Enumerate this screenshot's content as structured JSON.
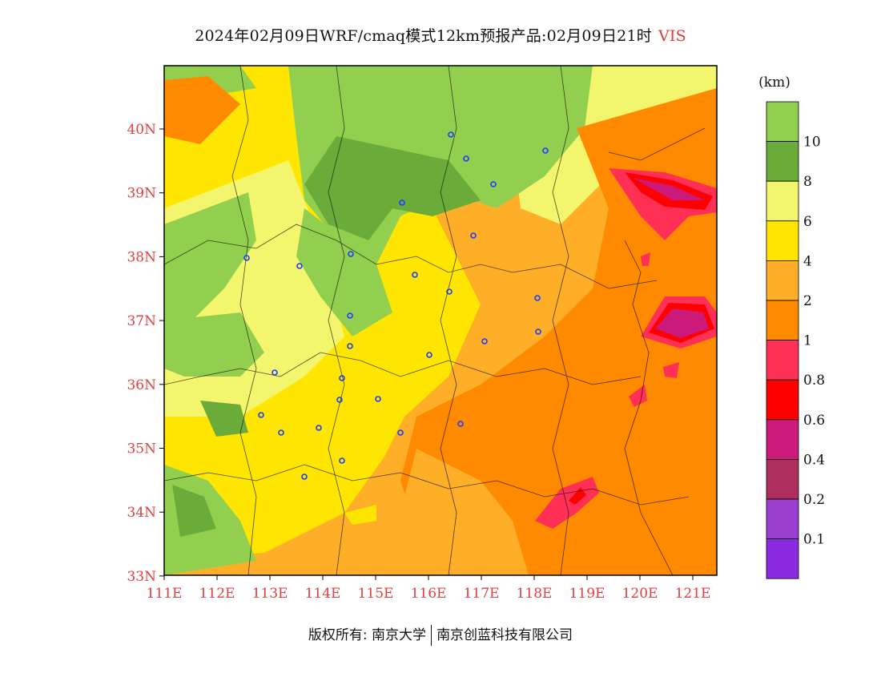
{
  "title": {
    "main": "2024年02月09日WRF/cmaq模式12km预报产品:02月09日21时",
    "variable": "VIS"
  },
  "legend": {
    "unit": "(km)",
    "levels": [
      {
        "label": "10",
        "color": "#93cf4f"
      },
      {
        "label": "8",
        "color": "#6bab3a"
      },
      {
        "label": "6",
        "color": "#f3f56c"
      },
      {
        "label": "4",
        "color": "#ffe600"
      },
      {
        "label": "2",
        "color": "#ffae27"
      },
      {
        "label": "1",
        "color": "#ff8a00"
      },
      {
        "label": "0.8",
        "color": "#ff2f55"
      },
      {
        "label": "0.6",
        "color": "#ff0000"
      },
      {
        "label": "0.4",
        "color": "#cc1a7a"
      },
      {
        "label": "0.2",
        "color": "#ad2e5c"
      },
      {
        "label": "0.1",
        "color": "#9b3fd1"
      },
      {
        "label": "",
        "color": "#8a2be2"
      }
    ]
  },
  "axes": {
    "lon_ticks": [
      "111E",
      "112E",
      "113E",
      "114E",
      "115E",
      "116E",
      "117E",
      "118E",
      "119E",
      "120E",
      "121E"
    ],
    "lat_ticks": [
      "40N",
      "39N",
      "38N",
      "37N",
      "36N",
      "35N",
      "34N",
      "33N"
    ]
  },
  "footer": {
    "left": "版权所有: 南京大学",
    "right": "南京创蓝科技有限公司"
  }
}
